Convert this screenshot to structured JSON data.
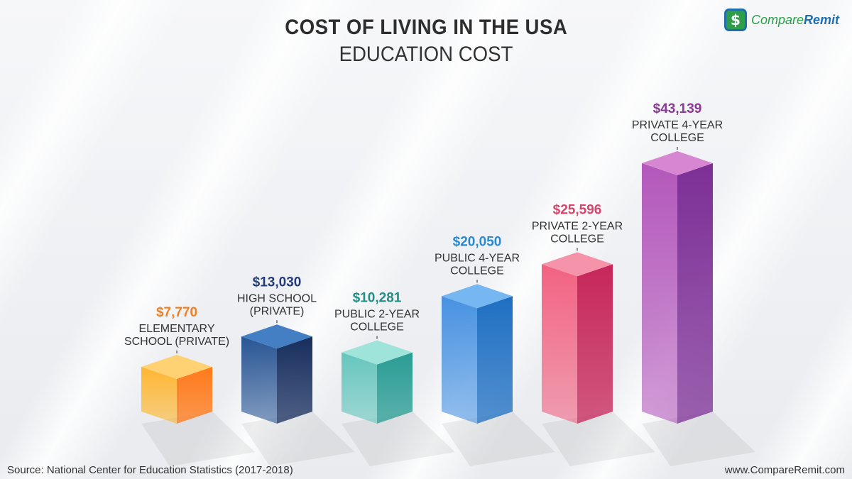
{
  "header": {
    "title": "COST OF LIVING IN THE USA",
    "subtitle": "EDUCATION COST"
  },
  "logo": {
    "brand_part1": "Compare",
    "brand_part2": "Remit",
    "icon": "dollar-sign-icon"
  },
  "footer": {
    "source": "Source: National Center for Education Statistics (2017-2018)",
    "website": "www.CompareRemit.com"
  },
  "chart_data": {
    "type": "bar",
    "title": "COST OF LIVING IN THE USA",
    "subtitle": "EDUCATION COST",
    "categories": [
      [
        "ELEMENTARY",
        "SCHOOL (PRIVATE)"
      ],
      [
        "HIGH SCHOOL",
        "(PRIVATE)"
      ],
      [
        "PUBLIC 2-YEAR",
        "COLLEGE"
      ],
      [
        "PUBLIC 4-YEAR",
        "COLLEGE"
      ],
      [
        "PRIVATE 2-YEAR",
        "COLLEGE"
      ],
      [
        "PRIVATE 4-YEAR",
        "COLLEGE"
      ]
    ],
    "values": [
      7770,
      13030,
      10281,
      20050,
      25596,
      43139
    ],
    "value_labels": [
      "$7,770",
      "$13,030",
      "$10,281",
      "$20,050",
      "$25,596",
      "$43,139"
    ],
    "colors": [
      {
        "front": "#ffb327",
        "side": "#ff7a1a",
        "top": "#ffcf6a",
        "label": "#f07f23"
      },
      {
        "front": "#1f4e8f",
        "side": "#172e5e",
        "top": "#3a78c0",
        "label": "#233d7b"
      },
      {
        "front": "#5fc4bb",
        "side": "#2a9d94",
        "top": "#9be3d8",
        "label": "#1f8f86"
      },
      {
        "front": "#3f8de0",
        "side": "#1e6fc2",
        "top": "#6fb2f0",
        "label": "#2a8ad0"
      },
      {
        "front": "#f25a7b",
        "side": "#c7265a",
        "top": "#f48da5",
        "label": "#d8456b"
      },
      {
        "front": "#b04fb8",
        "side": "#7d2f96",
        "top": "#d580cf",
        "label": "#8a3a95"
      }
    ],
    "xlabel": "",
    "ylabel": "",
    "grid": false,
    "legend": "none"
  }
}
